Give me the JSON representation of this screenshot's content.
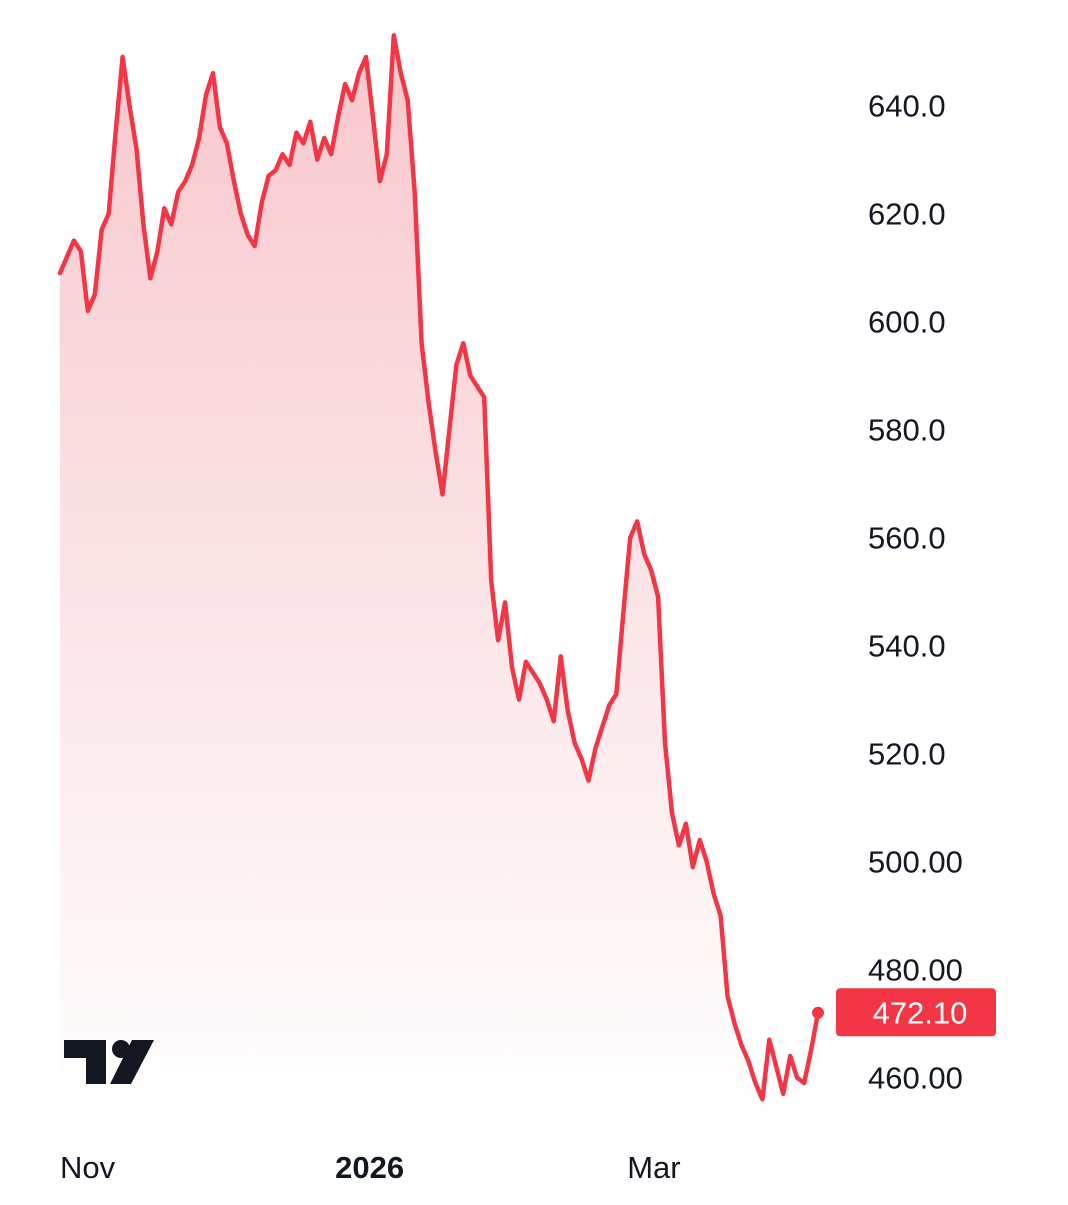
{
  "colors": {
    "line": "#f23645",
    "fill_top": "#f7c7cc",
    "fill_bottom": "#ffffff",
    "text": "#131722",
    "price_tag_bg": "#f23645",
    "price_tag_text": "#ffffff",
    "logo": "#131722"
  },
  "icons": {
    "logo": "tradingview-logo-icon"
  },
  "chart_data": {
    "type": "area",
    "ylim": [
      454,
      654
    ],
    "y_ticks": [
      {
        "value": 640,
        "label": "640.0"
      },
      {
        "value": 620,
        "label": "620.0"
      },
      {
        "value": 600,
        "label": "600.0"
      },
      {
        "value": 580,
        "label": "580.0"
      },
      {
        "value": 560,
        "label": "560.0"
      },
      {
        "value": 540,
        "label": "540.0"
      },
      {
        "value": 520,
        "label": "520.0"
      },
      {
        "value": 500,
        "label": "500.00"
      },
      {
        "value": 480,
        "label": "480.00"
      },
      {
        "value": 460,
        "label": "460.00"
      }
    ],
    "x_ticks": [
      {
        "index": 0,
        "label": "Nov",
        "bold": false
      },
      {
        "index": 41,
        "label": "2026",
        "bold": true
      },
      {
        "index": 83,
        "label": "Mar",
        "bold": false
      }
    ],
    "last_price": {
      "value": 472.1,
      "label": "472.10"
    },
    "series": [
      {
        "values": [
          609,
          612,
          615,
          613,
          602,
          605,
          617,
          620,
          635,
          649,
          640,
          632,
          618,
          608,
          613,
          621,
          618,
          624,
          626,
          629,
          634,
          642,
          646,
          636,
          633,
          626,
          620,
          616,
          614,
          622,
          627,
          628,
          631,
          629,
          635,
          633,
          637,
          630,
          634,
          631,
          638,
          644,
          641,
          646,
          649,
          638,
          626,
          631,
          653,
          646,
          641,
          624,
          596,
          585,
          576,
          568,
          580,
          592,
          596,
          590,
          588,
          586,
          552,
          541,
          548,
          536,
          530,
          537,
          535,
          533,
          530,
          526,
          538,
          528,
          522,
          519,
          515,
          521,
          525,
          529,
          531,
          546,
          560,
          563,
          557,
          554,
          549,
          522,
          509,
          503,
          507,
          499,
          504,
          500,
          494,
          490,
          475,
          470,
          466,
          463,
          459,
          456,
          467,
          462,
          457,
          464,
          460,
          459,
          465,
          472
        ]
      }
    ]
  }
}
